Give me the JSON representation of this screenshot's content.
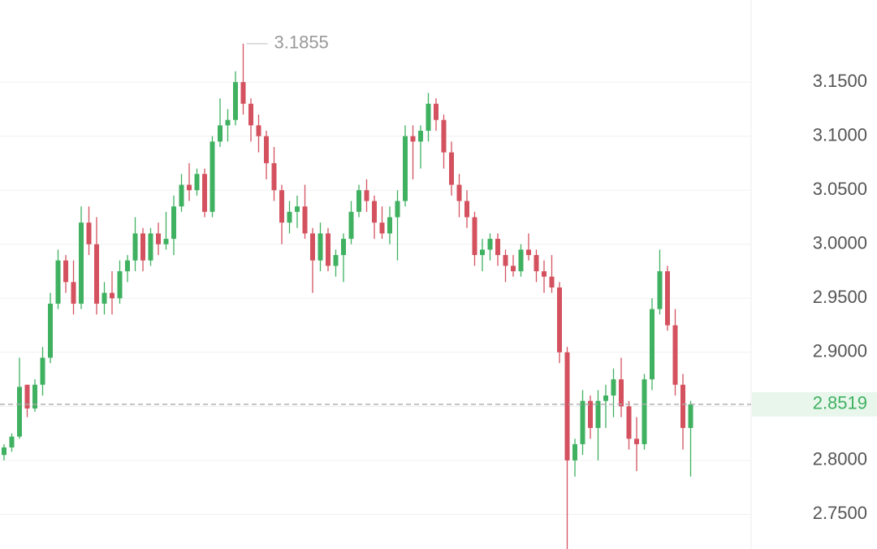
{
  "chart_data": {
    "type": "candlestick",
    "up_color": "#3fb160",
    "down_color": "#d4525f",
    "ylim": [
      2.718,
      3.226
    ],
    "yticks": [
      {
        "value": 2.75,
        "label": "2.7500"
      },
      {
        "value": 2.8,
        "label": "2.8000"
      },
      {
        "value": 2.85,
        "label": "2.8500"
      },
      {
        "value": 2.9,
        "label": "2.9000"
      },
      {
        "value": 2.95,
        "label": "2.9500"
      },
      {
        "value": 3.0,
        "label": "3.0000"
      },
      {
        "value": 3.05,
        "label": "3.0500"
      },
      {
        "value": 3.1,
        "label": "3.1000"
      },
      {
        "value": 3.15,
        "label": "3.1500"
      }
    ],
    "grid": true,
    "high_marker": 3.1855,
    "last_price": 2.8519,
    "open": [
      2.805,
      2.812,
      2.822,
      2.87,
      2.848,
      2.87,
      2.895,
      2.945,
      2.985,
      2.965,
      2.945,
      3.02,
      3.0,
      2.945,
      2.955,
      2.95,
      2.975,
      2.985,
      3.01,
      2.985,
      3.01,
      3.0,
      3.005,
      3.035,
      3.055,
      3.05,
      3.065,
      3.03,
      3.095,
      3.11,
      3.115,
      3.15,
      3.13,
      3.11,
      3.1,
      3.075,
      3.05,
      3.02,
      3.03,
      3.035,
      3.01,
      2.985,
      3.01,
      2.98,
      2.99,
      3.005,
      3.03,
      3.05,
      3.04,
      3.02,
      3.01,
      3.025,
      3.04,
      3.1,
      3.095,
      3.105,
      3.13,
      3.115,
      3.085,
      3.055,
      3.04,
      3.025,
      2.99,
      2.995,
      3.005,
      2.99,
      2.98,
      2.975,
      2.995,
      2.99,
      2.975,
      2.97,
      2.96,
      2.9,
      2.8,
      2.815,
      2.855,
      2.83,
      2.855,
      2.86,
      2.875,
      2.85,
      2.82,
      2.815,
      2.875,
      2.94,
      2.975,
      2.925,
      2.87,
      2.83
    ],
    "high": [
      2.815,
      2.825,
      2.895,
      2.87,
      2.875,
      2.905,
      2.955,
      2.995,
      2.99,
      2.985,
      3.035,
      3.035,
      3.025,
      2.965,
      2.975,
      2.985,
      2.99,
      3.025,
      3.015,
      3.015,
      3.02,
      3.03,
      3.045,
      3.065,
      3.075,
      3.07,
      3.07,
      3.1,
      3.135,
      3.125,
      3.16,
      3.1855,
      3.135,
      3.12,
      3.105,
      3.09,
      3.055,
      3.04,
      3.045,
      3.055,
      3.015,
      3.02,
      3.015,
      2.995,
      3.01,
      3.04,
      3.055,
      3.06,
      3.045,
      3.035,
      3.035,
      3.05,
      3.11,
      3.11,
      3.11,
      3.14,
      3.135,
      3.12,
      3.095,
      3.065,
      3.05,
      3.03,
      3.005,
      3.01,
      3.01,
      2.995,
      2.99,
      3.0,
      3.01,
      2.995,
      2.985,
      2.99,
      2.965,
      2.905,
      2.82,
      2.865,
      2.86,
      2.865,
      2.87,
      2.885,
      2.895,
      2.855,
      2.84,
      2.88,
      2.95,
      2.995,
      2.98,
      2.94,
      2.88,
      2.855
    ],
    "low": [
      2.8,
      2.808,
      2.82,
      2.84,
      2.845,
      2.86,
      2.89,
      2.94,
      2.955,
      2.935,
      2.94,
      2.99,
      2.935,
      2.935,
      2.935,
      2.945,
      2.965,
      2.975,
      2.975,
      2.98,
      2.99,
      2.995,
      2.99,
      3.03,
      3.04,
      3.045,
      3.025,
      3.025,
      3.09,
      3.095,
      3.11,
      3.12,
      3.095,
      3.085,
      3.06,
      3.04,
      3.0,
      3.01,
      3.015,
      3.005,
      2.955,
      2.975,
      2.975,
      2.97,
      2.965,
      3.0,
      3.025,
      3.03,
      3.005,
      3.005,
      3.0,
      2.985,
      3.035,
      3.06,
      3.07,
      3.095,
      3.105,
      3.07,
      3.045,
      3.025,
      3.015,
      2.98,
      2.975,
      2.985,
      2.98,
      2.965,
      2.97,
      2.97,
      2.985,
      2.965,
      2.955,
      2.955,
      2.89,
      2.718,
      2.785,
      2.805,
      2.82,
      2.8,
      2.83,
      2.84,
      2.84,
      2.81,
      2.79,
      2.81,
      2.865,
      2.935,
      2.92,
      2.86,
      2.81,
      2.785
    ],
    "close": [
      2.812,
      2.822,
      2.868,
      2.848,
      2.87,
      2.895,
      2.945,
      2.985,
      2.965,
      2.945,
      3.02,
      3.0,
      2.945,
      2.955,
      2.95,
      2.975,
      2.985,
      3.01,
      2.985,
      3.01,
      3.0,
      3.005,
      3.035,
      3.055,
      3.05,
      3.065,
      3.03,
      3.095,
      3.11,
      3.115,
      3.15,
      3.13,
      3.11,
      3.1,
      3.075,
      3.05,
      3.02,
      3.03,
      3.035,
      3.01,
      2.985,
      3.01,
      2.98,
      2.99,
      3.005,
      3.03,
      3.05,
      3.04,
      3.02,
      3.01,
      3.025,
      3.04,
      3.1,
      3.095,
      3.105,
      3.13,
      3.115,
      3.085,
      3.055,
      3.04,
      3.025,
      2.99,
      2.995,
      3.005,
      2.99,
      2.98,
      2.975,
      2.995,
      2.99,
      2.975,
      2.97,
      2.96,
      2.9,
      2.8,
      2.815,
      2.855,
      2.83,
      2.855,
      2.86,
      2.875,
      2.85,
      2.82,
      2.815,
      2.875,
      2.94,
      2.975,
      2.925,
      2.87,
      2.83,
      2.8519
    ]
  }
}
